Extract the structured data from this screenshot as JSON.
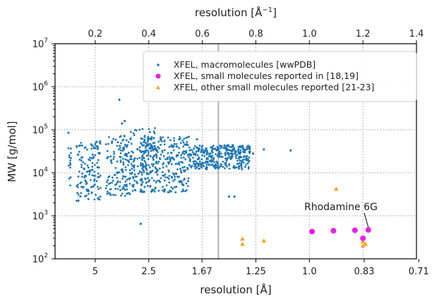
{
  "chart_data": {
    "type": "scatter",
    "x_axis_bottom": {
      "label": "resolution [Å]",
      "scale": "reciprocal",
      "ticks": [
        "5",
        "2.5",
        "1.67",
        "1.25",
        "1.0",
        "0.83",
        "0.71"
      ],
      "range_inverse_angstrom": [
        0.05,
        1.4
      ]
    },
    "x_axis_top": {
      "label": "resolution [Å",
      "label_sup": "−1",
      "label_end": "]",
      "ticks": [
        "0.2",
        "0.4",
        "0.6",
        "0.8",
        "1.0",
        "1.2",
        "1.4"
      ],
      "range": [
        0.05,
        1.4
      ]
    },
    "y_axis": {
      "label": "MW [g/mol]",
      "scale": "log",
      "range": [
        100,
        10000000
      ],
      "ticks": [
        {
          "base": "10",
          "exp": "2"
        },
        {
          "base": "10",
          "exp": "3"
        },
        {
          "base": "10",
          "exp": "4"
        },
        {
          "base": "10",
          "exp": "5"
        },
        {
          "base": "10",
          "exp": "6"
        },
        {
          "base": "10",
          "exp": "7"
        }
      ]
    },
    "grid": true,
    "legend_position": "top-right",
    "vertical_line_resolution_inverse_angstrom": 0.66,
    "series": [
      {
        "name": "XFEL, macromolecules [wwPDB]",
        "marker": "dot",
        "color": "#1f77b4",
        "points": [
          [
            0.1,
            85000
          ],
          [
            0.29,
            500000
          ],
          [
            0.31,
            160000
          ],
          [
            0.3,
            140000
          ],
          [
            0.37,
            650
          ],
          [
            0.58,
            60000
          ],
          [
            0.6,
            35000
          ],
          [
            0.63,
            28000
          ],
          [
            0.66,
            27000
          ],
          [
            0.7,
            2800
          ],
          [
            0.72,
            2800
          ],
          [
            0.79,
            28000
          ],
          [
            0.83,
            35000
          ],
          [
            0.93,
            33000
          ]
        ],
        "clusters": [
          {
            "x_range": [
              0.1,
              0.11
            ],
            "y_range": [
              4500,
              45000
            ]
          },
          {
            "x_range": [
              0.13,
              0.22
            ],
            "y_range": [
              2200,
              55000
            ]
          },
          {
            "x_range": [
              0.24,
              0.33
            ],
            "y_range": [
              2800,
              80000
            ]
          },
          {
            "x_range": [
              0.33,
              0.43
            ],
            "y_range": [
              3500,
              110000
            ]
          },
          {
            "x_range": [
              0.37,
              0.55
            ],
            "y_range": [
              3500,
              70000
            ]
          },
          {
            "x_range": [
              0.55,
              0.78
            ],
            "y_range": [
              12000,
              45000
            ]
          }
        ]
      },
      {
        "name": "XFEL, small molecules reported in [18,19]",
        "marker": "circle",
        "color": "#e81ee8",
        "points": [
          [
            1.01,
            430
          ],
          [
            1.09,
            450
          ],
          [
            1.17,
            460
          ],
          [
            1.2,
            300
          ],
          [
            1.22,
            470
          ]
        ]
      },
      {
        "name": "XFEL, other small molecules reported [21-23]",
        "marker": "triangle",
        "color": "#ff9f1c",
        "points": [
          [
            0.75,
            290
          ],
          [
            0.75,
            220
          ],
          [
            0.83,
            260
          ],
          [
            1.1,
            4200
          ],
          [
            1.2,
            300
          ],
          [
            1.2,
            250
          ],
          [
            1.2,
            200
          ],
          [
            1.21,
            220
          ]
        ]
      }
    ],
    "annotations": [
      {
        "text": "Rhodamine 6G",
        "points_to": [
          1.22,
          470
        ]
      }
    ]
  }
}
